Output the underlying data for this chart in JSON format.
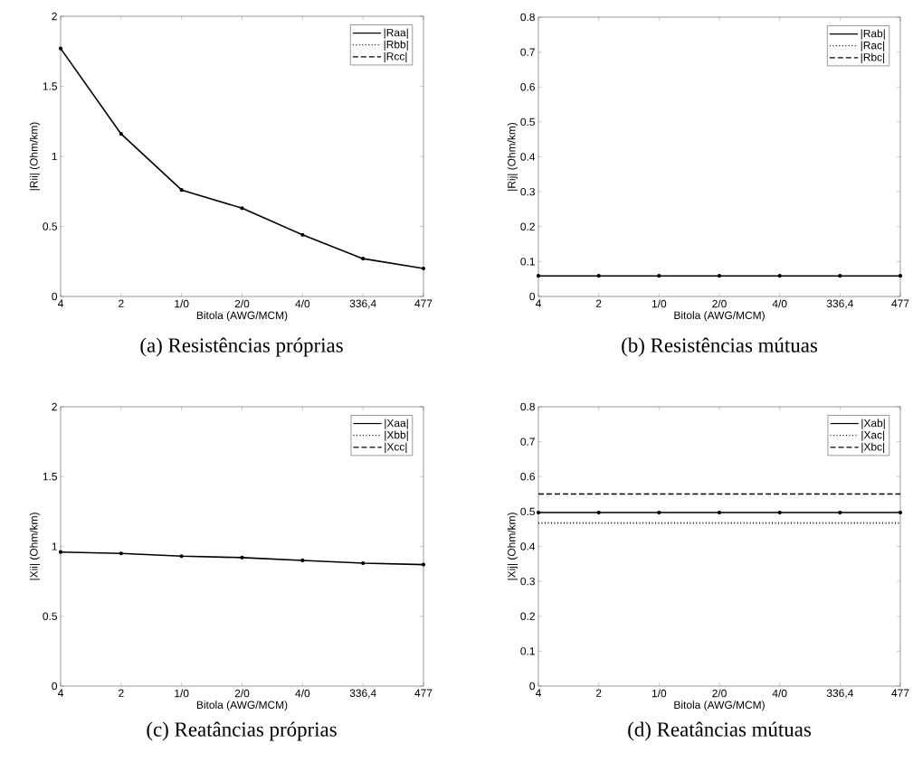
{
  "chart_data": [
    {
      "type": "line",
      "title": "(a) Resistências próprias",
      "xlabel": "Bitola (AWG/MCM)",
      "ylabel": "|Rii| (Ohm/km)",
      "categories": [
        "4",
        "2",
        "1/0",
        "2/0",
        "4/0",
        "336,4",
        "477"
      ],
      "ylim": [
        0,
        2
      ],
      "yticks": [
        0,
        0.5,
        1,
        1.5,
        2
      ],
      "legend": "top right",
      "series": [
        {
          "name": "|Raa|",
          "color": "#000000",
          "marker": "circle",
          "line_style": "solid",
          "values": [
            1.77,
            1.16,
            0.76,
            0.63,
            0.44,
            0.27,
            0.2
          ]
        },
        {
          "name": "|Rbb|",
          "color": "#000000",
          "marker": "none",
          "line_style": "dotted",
          "values": [
            null,
            null,
            null,
            null,
            null,
            null,
            null
          ]
        },
        {
          "name": "|Rcc|",
          "color": "#000000",
          "marker": "none",
          "line_style": "dashed",
          "values": [
            null,
            null,
            null,
            null,
            null,
            null,
            null
          ]
        }
      ]
    },
    {
      "type": "line",
      "title": "(b) Resistências mútuas",
      "xlabel": "Bitola (AWG/MCM)",
      "ylabel": "|Rij| (Ohm/km)",
      "categories": [
        "4",
        "2",
        "1/0",
        "2/0",
        "4/0",
        "336,4",
        "477"
      ],
      "ylim": [
        0,
        0.8
      ],
      "yticks": [
        0,
        0.1,
        0.2,
        0.3,
        0.4,
        0.5,
        0.6,
        0.7,
        0.8
      ],
      "legend": "top right",
      "series": [
        {
          "name": "|Rab|",
          "color": "#000000",
          "marker": "circle",
          "line_style": "solid",
          "values": [
            0.059,
            0.059,
            0.059,
            0.059,
            0.059,
            0.059,
            0.059
          ]
        },
        {
          "name": "|Rac|",
          "color": "#000000",
          "marker": "none",
          "line_style": "dotted",
          "values": [
            null,
            null,
            null,
            null,
            null,
            null,
            null
          ]
        },
        {
          "name": "|Rbc|",
          "color": "#000000",
          "marker": "none",
          "line_style": "dashed",
          "values": [
            null,
            null,
            null,
            null,
            null,
            null,
            null
          ]
        }
      ]
    },
    {
      "type": "line",
      "title": "(c) Reatâncias próprias",
      "xlabel": "Bitola (AWG/MCM)",
      "ylabel": "|Xii| (Ohm/km)",
      "categories": [
        "4",
        "2",
        "1/0",
        "2/0",
        "4/0",
        "336,4",
        "477"
      ],
      "ylim": [
        0,
        2
      ],
      "yticks": [
        0,
        0.5,
        1,
        1.5,
        2
      ],
      "legend": "top right",
      "series": [
        {
          "name": "|Xaa|",
          "color": "#000000",
          "marker": "circle",
          "line_style": "solid",
          "values": [
            0.96,
            0.95,
            0.93,
            0.92,
            0.9,
            0.88,
            0.87
          ]
        },
        {
          "name": "|Xbb|",
          "color": "#000000",
          "marker": "none",
          "line_style": "dotted",
          "values": [
            null,
            null,
            null,
            null,
            null,
            null,
            null
          ]
        },
        {
          "name": "|Xcc|",
          "color": "#000000",
          "marker": "none",
          "line_style": "dashed",
          "values": [
            null,
            null,
            null,
            null,
            null,
            null,
            null
          ]
        }
      ]
    },
    {
      "type": "line",
      "title": "(d) Reatâncias mútuas",
      "xlabel": "Bitola (AWG/MCM)",
      "ylabel": "|Xij| (Ohm/km)",
      "categories": [
        "4",
        "2",
        "1/0",
        "2/0",
        "4/0",
        "336,4",
        "477"
      ],
      "ylim": [
        0,
        0.8
      ],
      "yticks": [
        0,
        0.1,
        0.2,
        0.3,
        0.4,
        0.5,
        0.6,
        0.7,
        0.8
      ],
      "legend": "top right",
      "series": [
        {
          "name": "|Xab|",
          "color": "#000000",
          "marker": "circle",
          "line_style": "solid",
          "values": [
            0.497,
            0.497,
            0.497,
            0.497,
            0.497,
            0.497,
            0.497
          ]
        },
        {
          "name": "|Xac|",
          "color": "#000000",
          "marker": "none",
          "line_style": "dotted",
          "values": [
            0.467,
            0.467,
            0.467,
            0.467,
            0.467,
            0.467,
            0.467
          ]
        },
        {
          "name": "|Xbc|",
          "color": "#000000",
          "marker": "none",
          "line_style": "dashed",
          "values": [
            0.55,
            0.55,
            0.55,
            0.55,
            0.55,
            0.55,
            0.55
          ]
        }
      ]
    }
  ]
}
